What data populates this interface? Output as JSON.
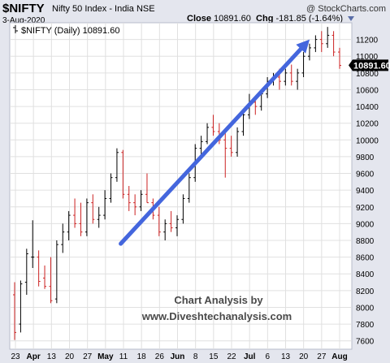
{
  "header": {
    "symbol": "$NIFTY",
    "name": "Nifty 50 Index - India NSE",
    "brand": "@ StockCharts.com",
    "date": "3-Aug-2020",
    "close_label": "Close",
    "close_value": "10891.60",
    "chg_label": "Chg",
    "chg_value": "-181.85 (-1.64%)"
  },
  "legend": {
    "text": "$NIFTY (Daily) 10891.60"
  },
  "price_tag": "10891.60",
  "watermark": {
    "line1": "Chart Analysis by",
    "line2": "www.Diveshtechanalysis.com"
  },
  "chart_data": {
    "type": "ohlc",
    "title": "$NIFTY (Daily) 10891.60",
    "ylim": [
      7500,
      11400
    ],
    "y_ticks": [
      7600,
      7800,
      8000,
      8200,
      8400,
      8600,
      8800,
      9000,
      9200,
      9400,
      9600,
      9800,
      10000,
      10200,
      10400,
      10600,
      10800,
      11000,
      11200
    ],
    "x_tick_labels": [
      "23",
      "Apr",
      "13",
      "20",
      "27",
      "May",
      "11",
      "18",
      "26",
      "Jun",
      "8",
      "15",
      "22",
      "Jul",
      "6",
      "13",
      "20",
      "27",
      "Aug"
    ],
    "grid": true,
    "last_close": 10891.6,
    "series": [
      {
        "values": [
          {
            "o": 8150,
            "h": 8300,
            "l": 7610,
            "c": 7700
          },
          {
            "o": 7800,
            "h": 8320,
            "l": 7700,
            "c": 8280
          },
          {
            "o": 8300,
            "h": 8700,
            "l": 8150,
            "c": 8640
          },
          {
            "o": 8600,
            "h": 9040,
            "l": 8470,
            "c": 8600
          },
          {
            "o": 8600,
            "h": 8680,
            "l": 8250,
            "c": 8310
          },
          {
            "o": 8350,
            "h": 8500,
            "l": 8220,
            "c": 8250
          },
          {
            "o": 8250,
            "h": 8600,
            "l": 8050,
            "c": 8080
          },
          {
            "o": 8100,
            "h": 8800,
            "l": 8050,
            "c": 8750
          },
          {
            "o": 8750,
            "h": 9000,
            "l": 8650,
            "c": 8900
          },
          {
            "o": 8900,
            "h": 9150,
            "l": 8800,
            "c": 9100
          },
          {
            "o": 9100,
            "h": 9300,
            "l": 8950,
            "c": 9000
          },
          {
            "o": 9000,
            "h": 9250,
            "l": 8850,
            "c": 8900
          },
          {
            "o": 8900,
            "h": 9300,
            "l": 8850,
            "c": 9250
          },
          {
            "o": 9250,
            "h": 9350,
            "l": 9000,
            "c": 9050
          },
          {
            "o": 9050,
            "h": 9200,
            "l": 8950,
            "c": 9100
          },
          {
            "o": 9100,
            "h": 9400,
            "l": 9050,
            "c": 9300
          },
          {
            "o": 9300,
            "h": 9600,
            "l": 9250,
            "c": 9550
          },
          {
            "o": 9550,
            "h": 9900,
            "l": 9500,
            "c": 9850
          },
          {
            "o": 9850,
            "h": 9880,
            "l": 9300,
            "c": 9350
          },
          {
            "o": 9350,
            "h": 9450,
            "l": 9150,
            "c": 9250
          },
          {
            "o": 9250,
            "h": 9350,
            "l": 9100,
            "c": 9200
          },
          {
            "o": 9200,
            "h": 9400,
            "l": 9150,
            "c": 9350
          },
          {
            "o": 9350,
            "h": 9600,
            "l": 9250,
            "c": 9250
          },
          {
            "o": 9250,
            "h": 9300,
            "l": 9050,
            "c": 9100
          },
          {
            "o": 9100,
            "h": 9200,
            "l": 8850,
            "c": 8900
          },
          {
            "o": 8900,
            "h": 9050,
            "l": 8800,
            "c": 9000
          },
          {
            "o": 9000,
            "h": 9150,
            "l": 8900,
            "c": 8950
          },
          {
            "o": 8950,
            "h": 9100,
            "l": 8850,
            "c": 9050
          },
          {
            "o": 9050,
            "h": 9350,
            "l": 9000,
            "c": 9300
          },
          {
            "o": 9300,
            "h": 9600,
            "l": 9250,
            "c": 9550
          },
          {
            "o": 9550,
            "h": 9950,
            "l": 9500,
            "c": 9900
          },
          {
            "o": 9900,
            "h": 10050,
            "l": 9800,
            "c": 9980
          },
          {
            "o": 9980,
            "h": 10200,
            "l": 9950,
            "c": 10150
          },
          {
            "o": 10150,
            "h": 10300,
            "l": 10050,
            "c": 10100
          },
          {
            "o": 10100,
            "h": 10200,
            "l": 9950,
            "c": 10000
          },
          {
            "o": 10000,
            "h": 10100,
            "l": 9550,
            "c": 9900
          },
          {
            "o": 9900,
            "h": 10050,
            "l": 9800,
            "c": 9850
          },
          {
            "o": 9850,
            "h": 10150,
            "l": 9800,
            "c": 10100
          },
          {
            "o": 10100,
            "h": 10350,
            "l": 10050,
            "c": 10300
          },
          {
            "o": 10300,
            "h": 10550,
            "l": 10250,
            "c": 10450
          },
          {
            "o": 10450,
            "h": 10520,
            "l": 10300,
            "c": 10400
          },
          {
            "o": 10400,
            "h": 10600,
            "l": 10350,
            "c": 10550
          },
          {
            "o": 10550,
            "h": 10750,
            "l": 10500,
            "c": 10700
          },
          {
            "o": 10700,
            "h": 10800,
            "l": 10650,
            "c": 10750
          },
          {
            "o": 10750,
            "h": 10850,
            "l": 10600,
            "c": 10700
          },
          {
            "o": 10700,
            "h": 10850,
            "l": 10650,
            "c": 10800
          },
          {
            "o": 10800,
            "h": 10900,
            "l": 10650,
            "c": 10700
          },
          {
            "o": 10700,
            "h": 10850,
            "l": 10600,
            "c": 10800
          },
          {
            "o": 10800,
            "h": 11050,
            "l": 10750,
            "c": 11000
          },
          {
            "o": 11000,
            "h": 11150,
            "l": 10950,
            "c": 11100
          },
          {
            "o": 11100,
            "h": 11250,
            "l": 11050,
            "c": 11200
          },
          {
            "o": 11200,
            "h": 11300,
            "l": 11050,
            "c": 11150
          },
          {
            "o": 11150,
            "h": 11350,
            "l": 11100,
            "c": 11250
          },
          {
            "o": 11250,
            "h": 11300,
            "l": 11000,
            "c": 11050
          },
          {
            "o": 11050,
            "h": 11100,
            "l": 10850,
            "c": 10890
          }
        ]
      }
    ],
    "annotations": [
      {
        "type": "trendline",
        "from": {
          "x": 41,
          "y": 8760
        },
        "to": {
          "x": 114,
          "y": 11200
        },
        "color": "#4466dd",
        "arrow": true
      }
    ]
  },
  "colors": {
    "up": "#000000",
    "down": "#cc2222",
    "grid": "#e0e0e0",
    "frame": "#cfd6e6",
    "trend": "#4466dd",
    "price_tag_bg": "#000000"
  }
}
